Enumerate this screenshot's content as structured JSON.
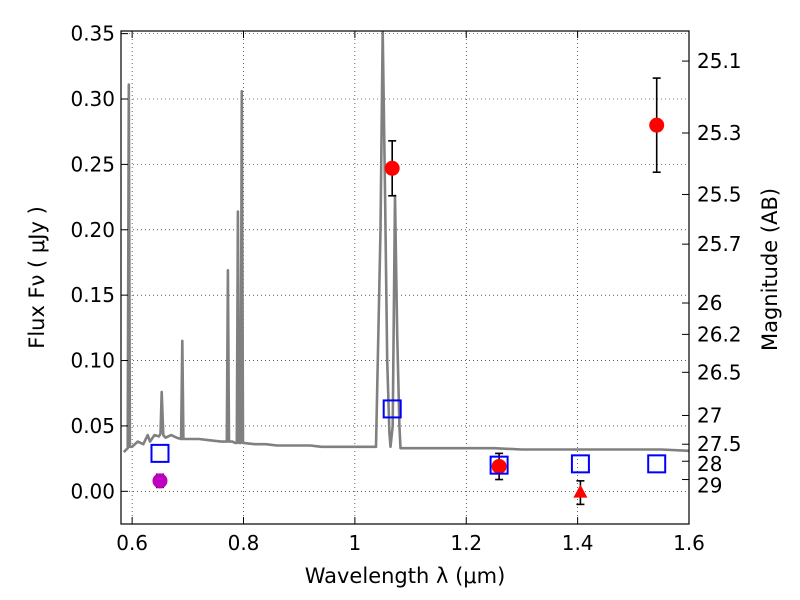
{
  "chart_data": {
    "type": "scatter",
    "title": "",
    "xlabel": "Wavelength  λ (μm)",
    "ylabel": "Flux  Fν  ( μJy )",
    "y2label": "Magnitude (AB)",
    "xlim": [
      0.58,
      1.6
    ],
    "ylim": [
      -0.025,
      0.352
    ],
    "grid": true,
    "x_ticks": [
      0.6,
      0.8,
      1.0,
      1.2,
      1.4,
      1.6
    ],
    "x_tick_labels": [
      "0.6",
      "0.8",
      "1",
      "1.2",
      "1.4",
      "1.6"
    ],
    "y_ticks": [
      0.0,
      0.05,
      0.1,
      0.15,
      0.2,
      0.25,
      0.3,
      0.35
    ],
    "y_tick_labels": [
      "0.00",
      "0.05",
      "0.10",
      "0.15",
      "0.20",
      "0.25",
      "0.30",
      "0.35"
    ],
    "y2_tick_labels": [
      "25.1",
      "25.3",
      "25.5",
      "25.7",
      "26",
      "26.2",
      "26.5",
      "27",
      "27.5",
      "28",
      "29"
    ],
    "y2_ticks_flux": [
      0.329,
      0.274,
      0.227,
      0.189,
      0.144,
      0.12,
      0.091,
      0.058,
      0.036,
      0.023,
      0.009
    ],
    "series": [
      {
        "role": "model-spectrum",
        "color": "#808080",
        "x": [
          0.585,
          0.592,
          0.594,
          0.596,
          0.6,
          0.61,
          0.62,
          0.628,
          0.632,
          0.64,
          0.648,
          0.651,
          0.653,
          0.656,
          0.66,
          0.67,
          0.68,
          0.688,
          0.69,
          0.692,
          0.7,
          0.72,
          0.74,
          0.76,
          0.77,
          0.772,
          0.774,
          0.78,
          0.785,
          0.788,
          0.79,
          0.792,
          0.795,
          0.797,
          0.799,
          0.8,
          0.82,
          0.84,
          0.86,
          0.88,
          0.9,
          0.92,
          0.94,
          0.96,
          0.98,
          1.0,
          1.02,
          1.038,
          1.046,
          1.05,
          1.054,
          1.058,
          1.062,
          1.064,
          1.068,
          1.072,
          1.076,
          1.08,
          1.082,
          1.1,
          1.15,
          1.2,
          1.25,
          1.3,
          1.35,
          1.4,
          1.45,
          1.5,
          1.55,
          1.6
        ],
        "y": [
          0.03,
          0.033,
          0.311,
          0.034,
          0.034,
          0.038,
          0.036,
          0.043,
          0.038,
          0.043,
          0.042,
          0.044,
          0.076,
          0.043,
          0.041,
          0.043,
          0.041,
          0.04,
          0.115,
          0.04,
          0.04,
          0.04,
          0.039,
          0.038,
          0.038,
          0.169,
          0.038,
          0.038,
          0.037,
          0.037,
          0.214,
          0.037,
          0.037,
          0.306,
          0.037,
          0.037,
          0.036,
          0.036,
          0.035,
          0.035,
          0.035,
          0.035,
          0.034,
          0.034,
          0.034,
          0.034,
          0.034,
          0.034,
          0.2,
          0.352,
          0.23,
          0.1,
          0.045,
          0.034,
          0.05,
          0.226,
          0.12,
          0.05,
          0.033,
          0.033,
          0.033,
          0.033,
          0.033,
          0.032,
          0.032,
          0.032,
          0.032,
          0.032,
          0.032,
          0.031
        ]
      },
      {
        "role": "observed-flux",
        "color": "#ff0000",
        "marker": "circle",
        "points": [
          {
            "x": 1.067,
            "y": 0.247,
            "err": 0.021
          },
          {
            "x": 1.259,
            "y": 0.019,
            "err": 0.01
          },
          {
            "x": 1.542,
            "y": 0.28,
            "err": 0.036
          }
        ]
      },
      {
        "role": "observed-flux-alt",
        "color": "#bf00bf",
        "marker": "circle",
        "points": [
          {
            "x": 0.65,
            "y": 0.008,
            "err": 0.005
          }
        ]
      },
      {
        "role": "upper-limit",
        "color": "#ff0000",
        "marker": "triangle",
        "points": [
          {
            "x": 1.405,
            "y": -0.001,
            "err": 0.009
          }
        ]
      },
      {
        "role": "model-band-flux",
        "color": "#0000ff",
        "marker": "open-square",
        "points": [
          {
            "x": 0.65,
            "y": 0.029
          },
          {
            "x": 1.067,
            "y": 0.063
          },
          {
            "x": 1.259,
            "y": 0.02
          },
          {
            "x": 1.405,
            "y": 0.021
          },
          {
            "x": 1.542,
            "y": 0.021
          }
        ]
      }
    ]
  }
}
